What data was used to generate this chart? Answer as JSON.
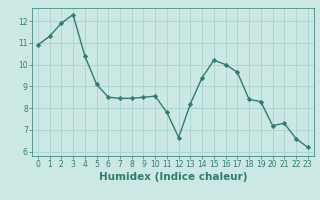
{
  "x": [
    0,
    1,
    2,
    3,
    4,
    5,
    6,
    7,
    8,
    9,
    10,
    11,
    12,
    13,
    14,
    15,
    16,
    17,
    18,
    19,
    20,
    21,
    22,
    23
  ],
  "y": [
    10.9,
    11.3,
    11.9,
    12.3,
    10.4,
    9.1,
    8.5,
    8.45,
    8.45,
    8.5,
    8.55,
    7.8,
    6.65,
    8.2,
    9.4,
    10.2,
    10.0,
    9.65,
    8.4,
    8.3,
    7.2,
    7.3,
    6.6,
    6.2
  ],
  "line_color": "#2e7d6e",
  "marker": "D",
  "marker_size": 2.2,
  "bg_color": "#cce8e4",
  "grid_color": "#aad4cf",
  "xlabel": "Humidex (Indice chaleur)",
  "xlim": [
    -0.5,
    23.5
  ],
  "ylim": [
    5.8,
    12.6
  ],
  "yticks": [
    6,
    7,
    8,
    9,
    10,
    11,
    12
  ],
  "xticks": [
    0,
    1,
    2,
    3,
    4,
    5,
    6,
    7,
    8,
    9,
    10,
    11,
    12,
    13,
    14,
    15,
    16,
    17,
    18,
    19,
    20,
    21,
    22,
    23
  ],
  "tick_color": "#2e7d6e",
  "label_color": "#2e7d6e",
  "tick_fontsize": 5.5,
  "xlabel_fontsize": 7.5
}
